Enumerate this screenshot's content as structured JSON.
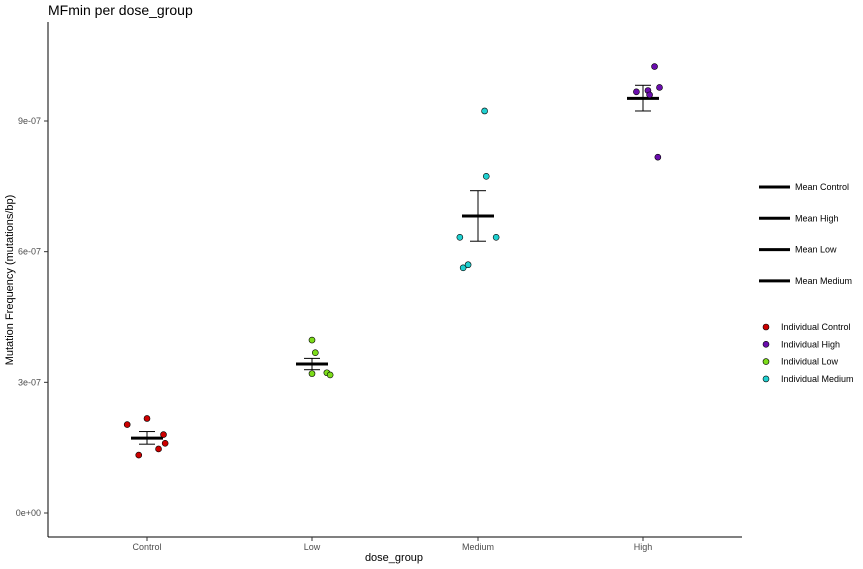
{
  "chart_data": {
    "type": "scatter",
    "title": "MFmin per dose_group",
    "xlabel": "dose_group",
    "ylabel": "Mutation Frequency (mutations/bp)",
    "categories": [
      "Control",
      "Low",
      "Medium",
      "High"
    ],
    "ylim": [
      -7e-08,
      1.12e-06
    ],
    "y_ticks": [
      0,
      3e-07,
      6e-07,
      9e-07
    ],
    "y_tick_labels": [
      "0e+00",
      "3e-07",
      "6e-07",
      "9e-07"
    ],
    "grid": false,
    "legend_position": "right",
    "colors": {
      "Control": "#cc0000",
      "High": "#6a0dad",
      "Low": "#7cdc1a",
      "Medium": "#20d0d0"
    },
    "means": [
      {
        "group": "Control",
        "mean": 1.72e-07,
        "se_low": 1.58e-07,
        "se_high": 1.87e-07
      },
      {
        "group": "Low",
        "mean": 3.42e-07,
        "se_low": 3.29e-07,
        "se_high": 3.55e-07
      },
      {
        "group": "Medium",
        "mean": 6.82e-07,
        "se_low": 6.24e-07,
        "se_high": 7.4e-07
      },
      {
        "group": "High",
        "mean": 9.52e-07,
        "se_low": 9.23e-07,
        "se_high": 9.82e-07
      }
    ],
    "points": [
      {
        "group": "Control",
        "jitter": -0.12,
        "y": 2.03e-07
      },
      {
        "group": "Control",
        "jitter": 0.0,
        "y": 2.17e-07
      },
      {
        "group": "Control",
        "jitter": 0.1,
        "y": 1.8e-07
      },
      {
        "group": "Control",
        "jitter": 0.11,
        "y": 1.6e-07
      },
      {
        "group": "Control",
        "jitter": 0.07,
        "y": 1.47e-07
      },
      {
        "group": "Control",
        "jitter": -0.05,
        "y": 1.33e-07
      },
      {
        "group": "Low",
        "jitter": 0.0,
        "y": 3.97e-07
      },
      {
        "group": "Low",
        "jitter": 0.02,
        "y": 3.68e-07
      },
      {
        "group": "Low",
        "jitter": 0.0,
        "y": 3.2e-07
      },
      {
        "group": "Low",
        "jitter": 0.09,
        "y": 3.22e-07
      },
      {
        "group": "Low",
        "jitter": 0.11,
        "y": 3.17e-07
      },
      {
        "group": "Medium",
        "jitter": -0.11,
        "y": 6.33e-07
      },
      {
        "group": "Medium",
        "jitter": -0.09,
        "y": 5.63e-07
      },
      {
        "group": "Medium",
        "jitter": -0.06,
        "y": 5.7e-07
      },
      {
        "group": "Medium",
        "jitter": 0.05,
        "y": 7.73e-07
      },
      {
        "group": "Medium",
        "jitter": 0.04,
        "y": 9.23e-07
      },
      {
        "group": "Medium",
        "jitter": 0.11,
        "y": 6.33e-07
      },
      {
        "group": "High",
        "jitter": -0.04,
        "y": 9.67e-07
      },
      {
        "group": "High",
        "jitter": 0.03,
        "y": 9.7e-07
      },
      {
        "group": "High",
        "jitter": 0.04,
        "y": 9.6e-07
      },
      {
        "group": "High",
        "jitter": 0.07,
        "y": 1.025e-06
      },
      {
        "group": "High",
        "jitter": 0.1,
        "y": 9.77e-07
      },
      {
        "group": "High",
        "jitter": 0.09,
        "y": 8.17e-07
      }
    ],
    "legend_lines": [
      {
        "label": "Mean Control",
        "color": "#000000"
      },
      {
        "label": "Mean High",
        "color": "#000000"
      },
      {
        "label": "Mean Low",
        "color": "#000000"
      },
      {
        "label": "Mean Medium",
        "color": "#000000"
      }
    ],
    "legend_points": [
      {
        "label": "Individual Control",
        "color": "#cc0000"
      },
      {
        "label": "Individual High",
        "color": "#6a0dad"
      },
      {
        "label": "Individual Low",
        "color": "#7cdc1a"
      },
      {
        "label": "Individual Medium",
        "color": "#20d0d0"
      }
    ]
  }
}
